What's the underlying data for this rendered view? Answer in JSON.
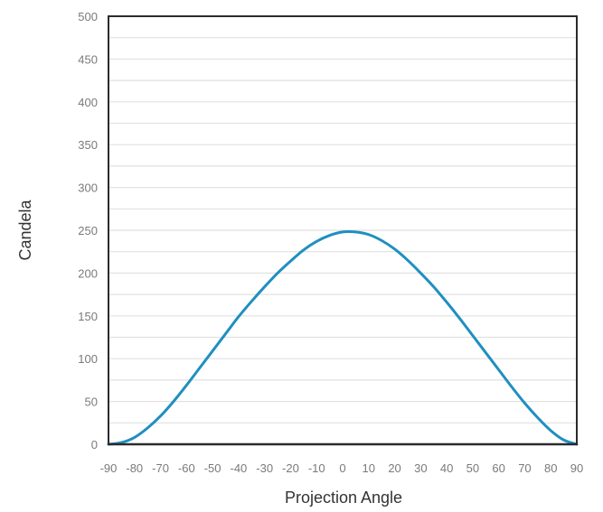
{
  "chart_data": {
    "type": "line",
    "title": "",
    "xlabel": "Projection Angle",
    "ylabel": "Candela",
    "xlim": [
      -90,
      90
    ],
    "ylim": [
      0,
      500
    ],
    "grid": true,
    "legend": "none",
    "x_ticks": [
      -90,
      -80,
      -70,
      -60,
      -50,
      -40,
      -30,
      -20,
      -10,
      0,
      10,
      20,
      30,
      40,
      50,
      60,
      70,
      80,
      90
    ],
    "y_ticks": [
      0,
      50,
      100,
      150,
      200,
      250,
      300,
      350,
      400,
      450,
      500
    ],
    "series": [
      {
        "color": "#1f8fc0",
        "x": [
          -90,
          -85,
          -80,
          -75,
          -70,
          -65,
          -60,
          -55,
          -50,
          -45,
          -40,
          -35,
          -30,
          -25,
          -20,
          -15,
          -10,
          -5,
          0,
          5,
          10,
          15,
          20,
          25,
          30,
          35,
          40,
          45,
          50,
          55,
          60,
          65,
          70,
          75,
          80,
          85,
          90
        ],
        "y": [
          0,
          2,
          8,
          19,
          33,
          50,
          69,
          89,
          109,
          129,
          149,
          167,
          184,
          200,
          214,
          227,
          237,
          244,
          248,
          248,
          245,
          238,
          228,
          215,
          200,
          184,
          166,
          147,
          127,
          107,
          87,
          67,
          48,
          31,
          16,
          5,
          0
        ]
      }
    ]
  }
}
